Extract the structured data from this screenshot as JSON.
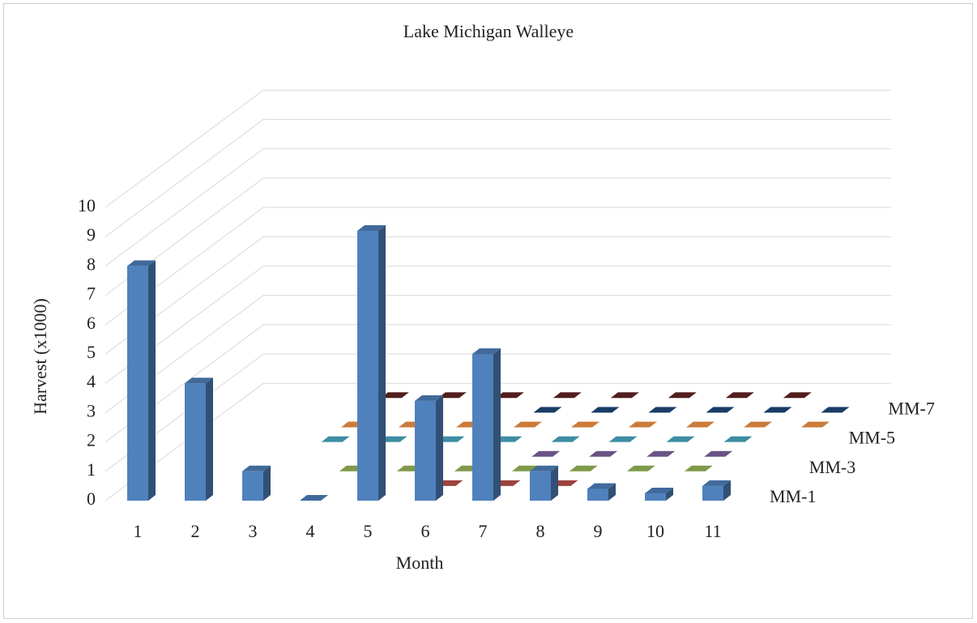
{
  "chart_data": {
    "type": "bar3d",
    "title": "Lake Michigan Walleye",
    "x_label": "Month",
    "y_label": "Harvest (x1000)",
    "categories": [
      "1",
      "2",
      "3",
      "4",
      "5",
      "6",
      "7",
      "8",
      "9",
      "10",
      "11"
    ],
    "depth_labels": [
      "MM-1",
      null,
      "MM-3",
      null,
      "MM-5",
      null,
      "MM-7",
      null
    ],
    "ylim": [
      0,
      10
    ],
    "yticks": [
      0,
      1,
      2,
      3,
      4,
      5,
      6,
      7,
      8,
      9,
      10
    ],
    "grid": true,
    "series": [
      {
        "color": "#4f81bd",
        "values": [
          8,
          4,
          1,
          0,
          9.2,
          3.4,
          5,
          1,
          0.4,
          0.25,
          0.5
        ]
      },
      {
        "color": "#c0504d",
        "values": [
          null,
          null,
          null,
          null,
          null,
          0,
          0,
          0,
          null,
          null,
          null
        ]
      },
      {
        "color": "#9bbb59",
        "values": [
          null,
          null,
          null,
          0,
          0,
          0,
          0,
          0,
          0,
          0,
          null
        ]
      },
      {
        "color": "#8064a2",
        "values": [
          null,
          null,
          null,
          null,
          null,
          null,
          0,
          0,
          0,
          0,
          null
        ]
      },
      {
        "color": "#4bacc6",
        "values": [
          null,
          null,
          0,
          0,
          0,
          0,
          0,
          0,
          0,
          0,
          null
        ]
      },
      {
        "color": "#f79646",
        "values": [
          null,
          null,
          0,
          0,
          0,
          0,
          0,
          0,
          0,
          0,
          0
        ]
      },
      {
        "color": "#1f497d",
        "values": [
          null,
          null,
          null,
          null,
          null,
          0,
          0,
          0,
          0,
          0,
          0
        ]
      },
      {
        "color": "#632523",
        "values": [
          null,
          null,
          0,
          0,
          0,
          0,
          0,
          0,
          0,
          0,
          null
        ]
      }
    ]
  }
}
